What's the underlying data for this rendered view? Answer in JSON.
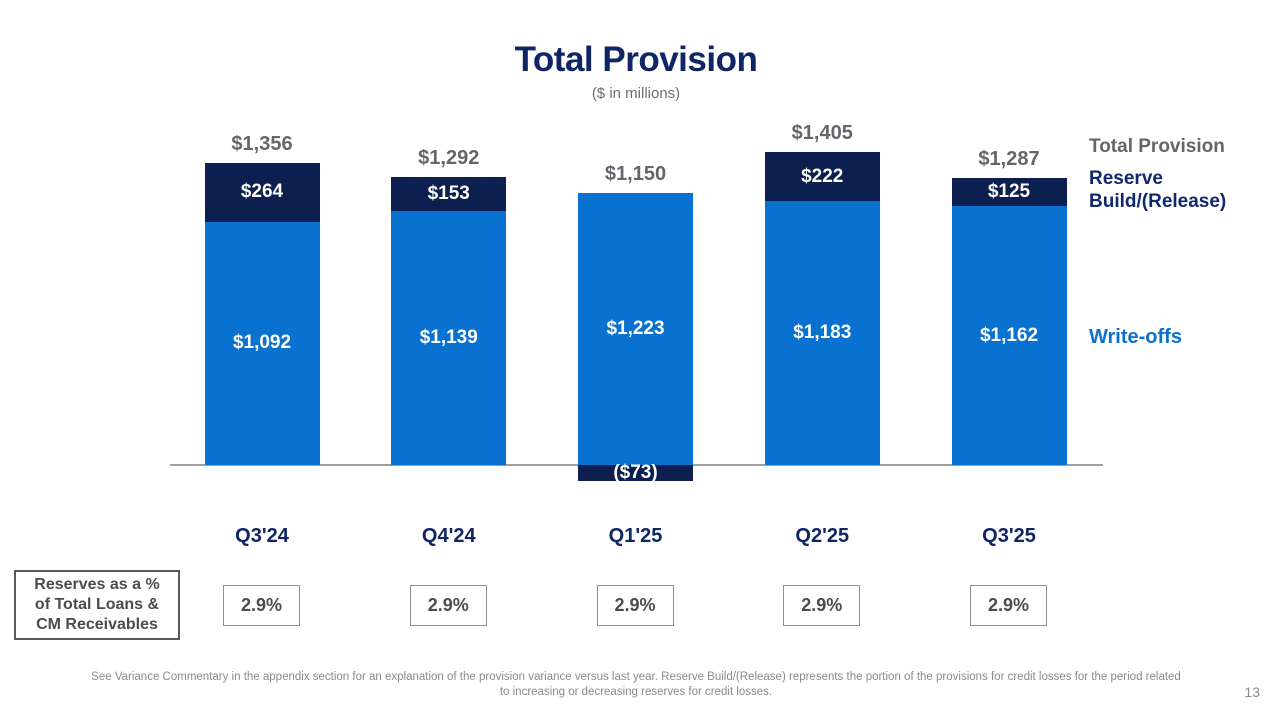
{
  "header": {
    "title": "Total Provision",
    "subtitle": "($ in millions)"
  },
  "chart_data": {
    "type": "bar",
    "stacked": true,
    "title": "Total Provision",
    "unit": "$ in millions",
    "categories": [
      "Q3'24",
      "Q4'24",
      "Q1'25",
      "Q2'25",
      "Q3'25"
    ],
    "series": [
      {
        "name": "Write-offs",
        "color": "#0971cf",
        "values": [
          1092,
          1139,
          1223,
          1183,
          1162
        ],
        "labels": [
          "$1,092",
          "$1,139",
          "$1,223",
          "$1,183",
          "$1,162"
        ]
      },
      {
        "name": "Reserve Build/(Release)",
        "color": "#0c1f4e",
        "values": [
          264,
          153,
          -73,
          222,
          125
        ],
        "labels": [
          "$264",
          "$153",
          "($73)",
          "$222",
          "$125"
        ]
      }
    ],
    "totals": {
      "name": "Total Provision",
      "values": [
        1356,
        1292,
        1150,
        1405,
        1287
      ],
      "labels": [
        "$1,356",
        "$1,292",
        "$1,150",
        "$1,405",
        "$1,287"
      ]
    },
    "legend_position": "right",
    "grid": false,
    "baseline_value": 0
  },
  "legend": {
    "total": "Total Provision",
    "reserve": "Reserve Build/(Release)",
    "writeoffs": "Write-offs"
  },
  "reserves_row": {
    "label": "Reserves as a %\nof Total Loans &\nCM Receivables",
    "values": [
      "2.9%",
      "2.9%",
      "2.9%",
      "2.9%",
      "2.9%"
    ]
  },
  "footnote": {
    "text": "See Variance Commentary in the appendix section for an explanation of the provision variance versus last year. Reserve Build/(Release) represents the portion of the provisions for credit losses for the period related to increasing or decreasing reserves for credit losses."
  },
  "page_number": "13"
}
